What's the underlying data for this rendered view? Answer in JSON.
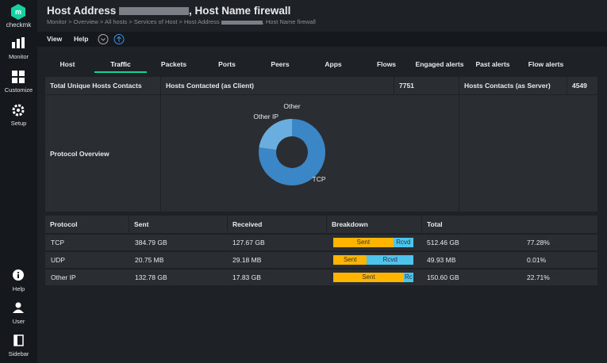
{
  "sidebar": {
    "logo": "checkmk",
    "items": [
      "Monitor",
      "Customize",
      "Setup"
    ],
    "bottom": [
      "Help",
      "User",
      "Sidebar"
    ]
  },
  "header": {
    "title_start": "Host Address",
    "title_end": ", Host Name firewall",
    "breadcrumb_start": "Monitor > Overview > All hosts > Services of Host > Host Address",
    "breadcrumb_end": ", Host Name firewall"
  },
  "menu": [
    "View",
    "Help"
  ],
  "tabs": {
    "items": [
      "Host",
      "Traffic",
      "Packets",
      "Ports",
      "Peers",
      "Apps",
      "Flows",
      "Engaged alerts",
      "Past alerts",
      "Flow alerts"
    ],
    "active": 1
  },
  "summary": {
    "total_label": "Total Unique Hosts Contacts",
    "client_label": "Hosts Contacted (as Client)",
    "client_value": "7751",
    "server_label": "Hosts Contacts (as Server)",
    "server_value": "4549"
  },
  "overview": {
    "label": "Protocol Overview",
    "chart": {
      "type": "pie",
      "labels": [
        "TCP",
        "Other IP",
        "Other"
      ],
      "values": [
        77.28,
        22.71,
        0.01
      ],
      "colors": [
        "#3a86c6",
        "#6aaee0",
        "#9fd0f2"
      ]
    }
  },
  "protocols": {
    "columns": [
      "Protocol",
      "Sent",
      "Received",
      "Breakdown",
      "Total"
    ],
    "rows": [
      [
        "TCP",
        "384.79 GB",
        "127.67 GB",
        "512.46 GB",
        "77.28%"
      ],
      [
        "UDP",
        "20.75 MB",
        "29.18 MB",
        "49.93 MB",
        "0.01%"
      ],
      [
        "Other IP",
        "132.78 GB",
        "17.83 GB",
        "150.60 GB",
        "22.71%"
      ]
    ],
    "breakdown": [
      {
        "sent_pct": 75,
        "sent_label": "Sent",
        "rcvd_label": "Rcvd"
      },
      {
        "sent_pct": 42,
        "sent_label": "Sent",
        "rcvd_label": "Rcvd"
      },
      {
        "sent_pct": 88,
        "sent_label": "Sent",
        "rcvd_label": "Rc"
      }
    ],
    "sent_color": "#ffb400",
    "rcvd_color": "#4cc4ee"
  }
}
